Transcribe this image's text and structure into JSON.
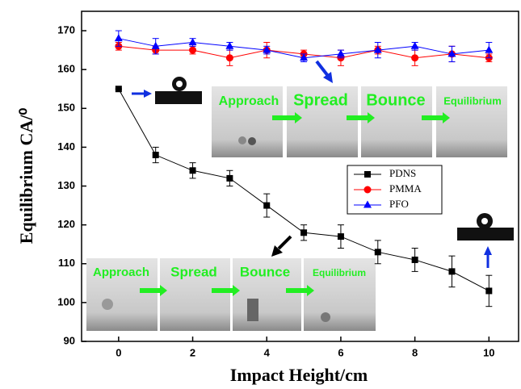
{
  "chart_data": {
    "type": "line",
    "x_label": "Impact Height/cm",
    "y_label": "Equilibrium CA/⁰",
    "x": [
      0,
      1,
      2,
      3,
      4,
      5,
      6,
      7,
      8,
      9,
      10
    ],
    "series": [
      {
        "name": "PDNS",
        "color": "#000000",
        "marker": "square",
        "values": [
          155,
          138,
          134,
          132,
          125,
          118,
          117,
          113,
          111,
          108,
          103
        ],
        "errors": [
          0,
          2,
          2,
          2,
          3,
          2,
          3,
          3,
          3,
          4,
          4
        ]
      },
      {
        "name": "PMMA",
        "color": "#ff0000",
        "marker": "circle",
        "values": [
          166,
          165,
          165,
          163,
          165,
          164,
          163,
          165,
          163,
          164,
          163
        ],
        "errors": [
          1,
          1,
          1,
          2,
          2,
          1,
          2,
          1,
          2,
          2,
          1
        ]
      },
      {
        "name": "PFO",
        "color": "#0000ff",
        "marker": "triangle",
        "values": [
          168,
          166,
          167,
          166,
          165,
          163,
          164,
          165,
          166,
          164,
          165
        ],
        "errors": [
          2,
          2,
          1,
          1,
          1,
          1,
          1,
          2,
          1,
          2,
          2
        ]
      }
    ],
    "xlim": [
      -1,
      10.8
    ],
    "xticks": [
      0,
      2,
      4,
      6,
      8,
      10
    ],
    "ylim": [
      90,
      175
    ],
    "yticks": [
      90,
      100,
      110,
      120,
      130,
      140,
      150,
      160,
      170
    ],
    "annotations": [
      "Approach",
      "Spread",
      "Bounce",
      "Equilibrium",
      "Approach",
      "Spread",
      "Bounce",
      "Equilibrium"
    ]
  }
}
